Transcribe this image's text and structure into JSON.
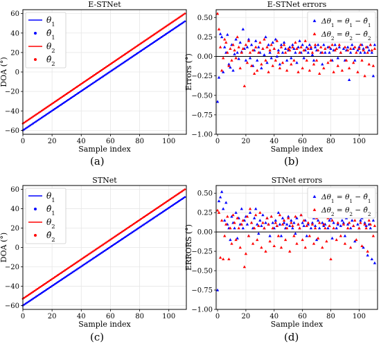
{
  "panel_labels": [
    "(a)",
    "(b)",
    "(c)",
    "(d)"
  ],
  "chart_data": [
    {
      "panel": "(a)",
      "type": "line",
      "title": "E-STNet",
      "xlabel": "Sample index",
      "ylabel": "DOA (°)",
      "xlim": [
        0,
        112
      ],
      "ylim": [
        -64,
        64
      ],
      "xticks": [
        0,
        20,
        40,
        60,
        80,
        100
      ],
      "yticks": [
        -60,
        -40,
        -20,
        0,
        20,
        40,
        60
      ],
      "grid": true,
      "legend_position": "top-left",
      "x": {
        "start": 0,
        "end": 111,
        "step": 1
      },
      "series": [
        {
          "name": "θ1",
          "style": "line",
          "color": "#0000ff",
          "start": -60,
          "end": 52
        },
        {
          "name": "θ̂1",
          "style": "dots",
          "color": "#0000ff",
          "start": -60,
          "end": 52
        },
        {
          "name": "θ2",
          "style": "line",
          "color": "#ff0000",
          "start": -53,
          "end": 60
        },
        {
          "name": "θ̂2",
          "style": "dots",
          "color": "#ff0000",
          "start": -53,
          "end": 60
        }
      ]
    },
    {
      "panel": "(b)",
      "type": "scatter",
      "title": "E-STNet errors",
      "xlabel": "Sample index",
      "ylabel": "Errors (°)",
      "xlim": [
        -1,
        113
      ],
      "ylim": [
        -1.0,
        0.6
      ],
      "xticks": [
        0,
        20,
        40,
        60,
        80,
        100
      ],
      "yticks": [
        -1.0,
        -0.75,
        -0.5,
        -0.25,
        0.0,
        0.25,
        0.5
      ],
      "ytick_labels": [
        "−1.00",
        "−0.75",
        "−0.50",
        "−0.25",
        "0.00",
        "0.25",
        "0.50"
      ],
      "grid": true,
      "zero_line": true,
      "legend_position": "top-right",
      "series": [
        {
          "name": "Δθ1 = θ1 − θ̂1",
          "marker": "triangle",
          "color": "#0000ff",
          "values": [
            -0.58,
            -0.27,
            0.29,
            0.25,
            -0.2,
            0.12,
            0.05,
            0.28,
            -0.1,
            -0.14,
            0.15,
            -0.18,
            0.03,
            0.22,
            0.05,
            -0.03,
            0.18,
            0.06,
            0.35,
            0.1,
            -0.05,
            0.12,
            0.22,
            -0.02,
            0.15,
            -0.12,
            0.08,
            0.2,
            -0.05,
            0.12,
            0.05,
            -0.15,
            0.1,
            0.02,
            0.25,
            -0.08,
            0.15,
            0.05,
            -0.02,
            0.18,
            0.1,
            0.22,
            0.0,
            0.08,
            -0.1,
            0.15,
            0.05,
            0.18,
            0.1,
            -0.05,
            0.08,
            0.12,
            -0.02,
            0.15,
            0.1,
            0.05,
            -0.08,
            0.12,
            0.2,
            0.05,
            0.15,
            -0.02,
            0.08,
            0.12,
            0.05,
            0.15,
            0.1,
            0.02,
            -0.05,
            0.12,
            0.08,
            0.15,
            0.22,
            0.05,
            -0.1,
            0.15,
            0.05,
            0.2,
            0.12,
            0.05,
            0.1,
            -0.05,
            0.08,
            0.15,
            0.1,
            -0.02,
            0.12,
            0.05,
            0.2,
            0.1,
            -0.05,
            0.08,
            0.12,
            -0.3,
            0.05,
            0.15,
            0.1,
            -0.05,
            0.2,
            0.08,
            0.12,
            0.05,
            0.15,
            0.1,
            0.05,
            0.2,
            0.12,
            0.08,
            0.15,
            0.05,
            -0.25,
            0.15
          ]
        },
        {
          "name": "Δθ2 = θ2 − θ̂2",
          "marker": "triangle",
          "color": "#ff0000",
          "values": [
            0.55,
            0.35,
            0.12,
            -0.18,
            -0.02,
            0.22,
            0.18,
            0.05,
            -0.12,
            0.1,
            -0.05,
            0.15,
            0.08,
            -0.02,
            0.25,
            0.12,
            -0.15,
            0.05,
            0.1,
            -0.38,
            0.15,
            -0.08,
            0.2,
            0.05,
            -0.12,
            0.08,
            -0.22,
            0.12,
            -0.18,
            0.05,
            0.18,
            -0.1,
            0.1,
            0.22,
            -0.05,
            0.12,
            -0.2,
            0.08,
            0.15,
            -0.12,
            0.1,
            -0.05,
            0.2,
            0.05,
            -0.15,
            0.12,
            -0.08,
            0.15,
            0.05,
            -0.18,
            0.1,
            0.08,
            -0.1,
            0.12,
            -0.05,
            0.18,
            0.1,
            -0.2,
            0.05,
            0.12,
            -0.15,
            0.08,
            0.2,
            -0.05,
            0.1,
            -0.18,
            0.12,
            0.05,
            -0.1,
            0.15,
            -0.05,
            0.08,
            -0.22,
            0.12,
            0.05,
            -0.15,
            0.1,
            0.2,
            -0.08,
            0.12,
            -0.05,
            0.15,
            -0.2,
            0.08,
            0.1,
            -0.12,
            0.15,
            0.05,
            -0.18,
            0.35,
            0.12,
            -0.05,
            0.08,
            -0.15,
            0.1,
            0.22,
            -0.08,
            0.12,
            0.05,
            -0.2,
            0.1,
            0.15,
            -0.05,
            0.08,
            -0.25,
            0.12,
            0.05,
            -0.1,
            0.15,
            0.08,
            -0.12,
            0.1
          ]
        }
      ]
    },
    {
      "panel": "(c)",
      "type": "line",
      "title": "STNet",
      "xlabel": "Sample index",
      "ylabel": "DOA (°)",
      "xlim": [
        0,
        112
      ],
      "ylim": [
        -64,
        64
      ],
      "xticks": [
        0,
        20,
        40,
        60,
        80,
        100
      ],
      "yticks": [
        -60,
        -40,
        -20,
        0,
        20,
        40,
        60
      ],
      "grid": true,
      "legend_position": "top-left",
      "x": {
        "start": 0,
        "end": 111,
        "step": 1
      },
      "series": [
        {
          "name": "θ1",
          "style": "line",
          "color": "#0000ff",
          "start": -60,
          "end": 52
        },
        {
          "name": "θ̂1",
          "style": "dots",
          "color": "#0000ff",
          "start": -60,
          "end": 52
        },
        {
          "name": "θ2",
          "style": "line",
          "color": "#ff0000",
          "start": -53,
          "end": 60
        },
        {
          "name": "θ̂2",
          "style": "dots",
          "color": "#ff0000",
          "start": -53,
          "end": 60
        }
      ]
    },
    {
      "panel": "(d)",
      "type": "scatter",
      "title": "STNet errors",
      "xlabel": "Sample index",
      "ylabel": "ERRORS (°)",
      "xlim": [
        -1,
        113
      ],
      "ylim": [
        -1.0,
        0.6
      ],
      "xticks": [
        0,
        20,
        40,
        60,
        80,
        100
      ],
      "yticks": [
        -1.0,
        -0.75,
        -0.5,
        -0.25,
        0.0,
        0.25,
        0.5
      ],
      "ytick_labels": [
        "−1.00",
        "−0.75",
        "−0.50",
        "−0.25",
        "0.00",
        "0.25",
        "0.50"
      ],
      "grid": true,
      "zero_line": true,
      "legend_position": "top-right",
      "series": [
        {
          "name": "Δθ1 = θ1 − θ̂1",
          "marker": "triangle",
          "color": "#0000ff",
          "values": [
            -0.75,
            0.4,
            0.45,
            0.52,
            0.3,
            0.15,
            0.38,
            0.1,
            0.05,
            -0.1,
            0.2,
            0.12,
            0.05,
            0.25,
            -0.08,
            0.18,
            0.1,
            0.3,
            0.05,
            0.15,
            0.2,
            0.1,
            -0.05,
            0.25,
            0.12,
            0.05,
            0.18,
            0.3,
            0.1,
            -0.02,
            0.15,
            0.08,
            0.22,
            0.05,
            0.12,
            0.18,
            0.1,
            -0.05,
            0.2,
            0.12,
            0.05,
            0.15,
            0.08,
            0.25,
            0.1,
            -0.05,
            0.18,
            0.12,
            0.05,
            0.1,
            0.2,
            0.08,
            0.15,
            0.05,
            0.12,
            -0.02,
            0.18,
            0.1,
            0.05,
            0.22,
            0.12,
            0.08,
            0.15,
            -0.05,
            0.1,
            0.2,
            0.05,
            0.12,
            0.18,
            0.08,
            -0.1,
            0.15,
            0.05,
            0.2,
            0.12,
            0.08,
            0.1,
            0.22,
            0.05,
            0.15,
            0.18,
            -0.08,
            0.12,
            0.25,
            0.05,
            0.1,
            0.2,
            0.08,
            0.15,
            0.12,
            -0.05,
            0.18,
            0.1,
            0.22,
            0.05,
            0.15,
            0.08,
            -0.12,
            0.2,
            0.1,
            0.05,
            0.15,
            0.18,
            -0.2,
            0.12,
            0.08,
            -0.3,
            0.1,
            0.05,
            -0.35,
            0.15,
            -0.4
          ]
        },
        {
          "name": "Δθ2 = θ2 − θ̂2",
          "marker": "triangle",
          "color": "#ff0000",
          "values": [
            0.28,
            0.25,
            -0.33,
            0.15,
            -0.35,
            -0.05,
            0.1,
            0.2,
            -0.35,
            0.05,
            -0.15,
            0.22,
            0.12,
            -0.1,
            0.18,
            0.05,
            -0.2,
            0.1,
            0.15,
            -0.45,
            -0.28,
            0.2,
            -0.05,
            0.3,
            0.12,
            -0.15,
            0.05,
            0.22,
            -0.1,
            0.08,
            0.25,
            -0.2,
            0.12,
            0.05,
            -0.25,
            0.18,
            0.1,
            -0.12,
            0.2,
            0.05,
            -0.18,
            0.12,
            0.08,
            -0.05,
            0.22,
            -0.2,
            0.1,
            0.15,
            -0.1,
            0.05,
            0.18,
            -0.25,
            0.12,
            0.08,
            -0.05,
            0.2,
            -0.15,
            0.1,
            0.05,
            0.22,
            -0.1,
            0.15,
            -0.2,
            0.08,
            0.12,
            -0.05,
            0.25,
            0.1,
            -0.15,
            0.05,
            0.18,
            -0.08,
            0.12,
            0.22,
            -0.2,
            0.1,
            0.05,
            -0.12,
            0.18,
            0.08,
            -0.35,
            0.15,
            0.05,
            0.25,
            -0.1,
            0.12,
            0.2,
            -0.05,
            0.28,
            0.1,
            -0.15,
            0.22,
            0.05,
            0.12,
            -0.2,
            0.3,
            0.08,
            0.15,
            -0.1,
            0.25,
            0.05,
            0.12,
            -0.18,
            0.2,
            0.1,
            0.05,
            -0.25,
            0.15,
            0.1,
            0.22,
            -0.05,
            0.08
          ]
        }
      ]
    }
  ]
}
